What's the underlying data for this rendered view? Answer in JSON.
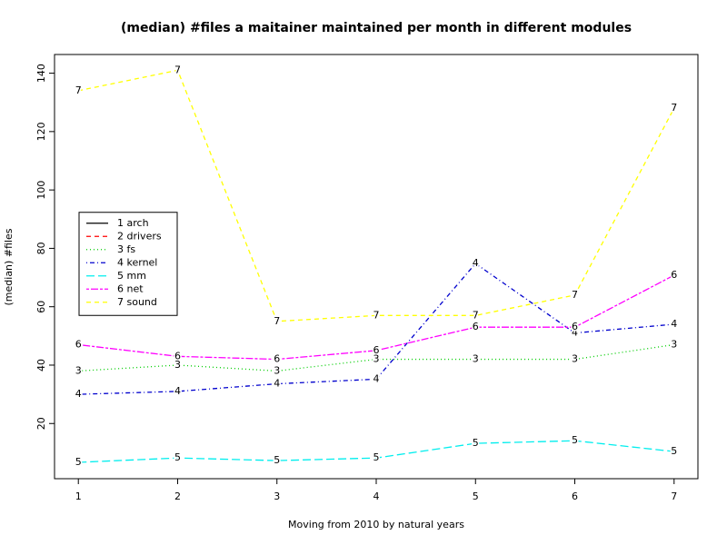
{
  "chart_data": {
    "type": "line",
    "title": "(median) #files a maitainer maintained per month in different modules",
    "x_label": "Moving from 2010 by natural years",
    "y_label": "(median) #files",
    "x": [
      1,
      2,
      3,
      4,
      5,
      6,
      7
    ],
    "xlim": [
      0.76,
      7.24
    ],
    "xticks": [
      1,
      2,
      3,
      4,
      5,
      6,
      7
    ],
    "ylim": [
      1.1,
      146.4
    ],
    "yticks": [
      20,
      40,
      60,
      80,
      100,
      120,
      140
    ],
    "grid": false,
    "legend": "left",
    "series": [
      {
        "name": "1 arch",
        "marker": "1",
        "color": "#000000",
        "linestyle": "solid",
        "values": [
          null,
          null,
          null,
          null,
          null,
          null,
          null
        ]
      },
      {
        "name": "2 drivers",
        "marker": "2",
        "color": "#ff0000",
        "linestyle": "dashed",
        "values": [
          null,
          null,
          null,
          null,
          null,
          null,
          null
        ]
      },
      {
        "name": "3 fs",
        "marker": "3",
        "color": "#00cd00",
        "linestyle": "dotted",
        "values": [
          38,
          40,
          38,
          42,
          42,
          42,
          47
        ]
      },
      {
        "name": "4 kernel",
        "marker": "4",
        "color": "#0000cd",
        "linestyle": "dotdash",
        "values": [
          30,
          31,
          33.6,
          35.2,
          74.8,
          51,
          54
        ]
      },
      {
        "name": "5 mm",
        "marker": "5",
        "color": "#00eeee",
        "linestyle": "longdash",
        "values": [
          6.7,
          8.2,
          7.3,
          8.2,
          13.2,
          14.1,
          10.4
        ]
      },
      {
        "name": "6 net",
        "marker": "6",
        "color": "#ff00ff",
        "linestyle": "twodash",
        "values": [
          47,
          43,
          42,
          45,
          53,
          53,
          70.8
        ]
      },
      {
        "name": "7 sound",
        "marker": "7",
        "color": "#ffff00",
        "linestyle": "dashed",
        "values": [
          134,
          141,
          55,
          57,
          57,
          64,
          128
        ]
      }
    ]
  }
}
